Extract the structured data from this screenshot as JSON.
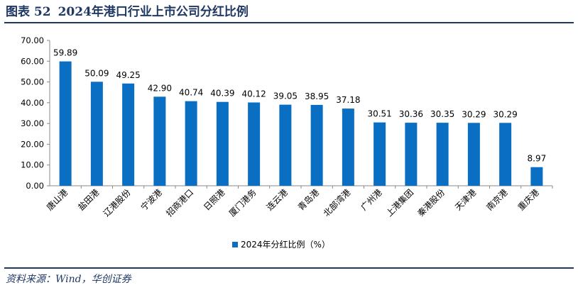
{
  "header": {
    "figure_no": "图表 52",
    "title": "2024年港口行业上市公司分红比例"
  },
  "footer": {
    "source": "资料来源：Wind，华创证券"
  },
  "colors": {
    "bar": "#0a6fc2",
    "accent": "#1f3864"
  },
  "chart_data": {
    "type": "bar",
    "categories": [
      "唐山港",
      "盐田港",
      "辽港股份",
      "宁波港",
      "招商港口",
      "日照港",
      "厦门港务",
      "连云港",
      "青岛港",
      "北部湾港",
      "广州港",
      "上港集团",
      "秦港股份",
      "天津港",
      "南京港",
      "重庆港"
    ],
    "series": [
      {
        "name": "2024年分红比例（%）",
        "values": [
          59.89,
          50.09,
          49.25,
          42.9,
          40.74,
          40.39,
          40.12,
          39.05,
          38.95,
          37.18,
          30.51,
          30.36,
          30.35,
          30.29,
          30.29,
          8.97
        ]
      }
    ],
    "value_labels": [
      "59.89",
      "50.09",
      "49.25",
      "42.90",
      "40.74",
      "40.39",
      "40.12",
      "39.05",
      "38.95",
      "37.18",
      "30.51",
      "30.36",
      "30.35",
      "30.29",
      "30.29",
      "8.97"
    ],
    "yticks": [
      "0.00",
      "10.00",
      "20.00",
      "30.00",
      "40.00",
      "50.00",
      "60.00",
      "70.00"
    ],
    "ylim": [
      0,
      70
    ],
    "grid": false,
    "legend_position": "bottom"
  }
}
